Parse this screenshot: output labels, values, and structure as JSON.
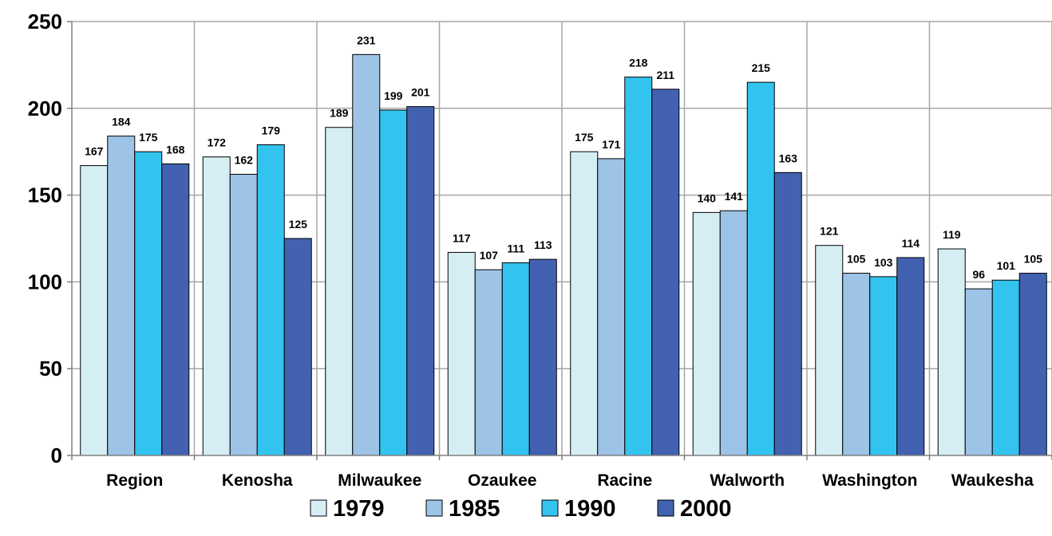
{
  "chart_data": {
    "type": "bar",
    "title": "",
    "xlabel": "",
    "ylabel": "",
    "categories": [
      "Region",
      "Kenosha",
      "Milwaukee",
      "Ozaukee",
      "Racine",
      "Walworth",
      "Washington",
      "Waukesha"
    ],
    "series": [
      {
        "name": "1979",
        "color": "#d4eef3",
        "values": [
          167,
          172,
          189,
          117,
          175,
          140,
          121,
          119
        ]
      },
      {
        "name": "1985",
        "color": "#9dc3e6",
        "values": [
          184,
          162,
          231,
          107,
          171,
          141,
          105,
          96
        ]
      },
      {
        "name": "1990",
        "color": "#33c3ef",
        "values": [
          175,
          179,
          199,
          111,
          218,
          215,
          103,
          101
        ]
      },
      {
        "name": "2000",
        "color": "#4262b1",
        "values": [
          168,
          125,
          201,
          113,
          211,
          163,
          114,
          105
        ]
      }
    ],
    "ylim": [
      0,
      250
    ],
    "yticks": [
      0,
      50,
      100,
      150,
      200,
      250
    ],
    "grid": true,
    "legend": "bottom"
  }
}
